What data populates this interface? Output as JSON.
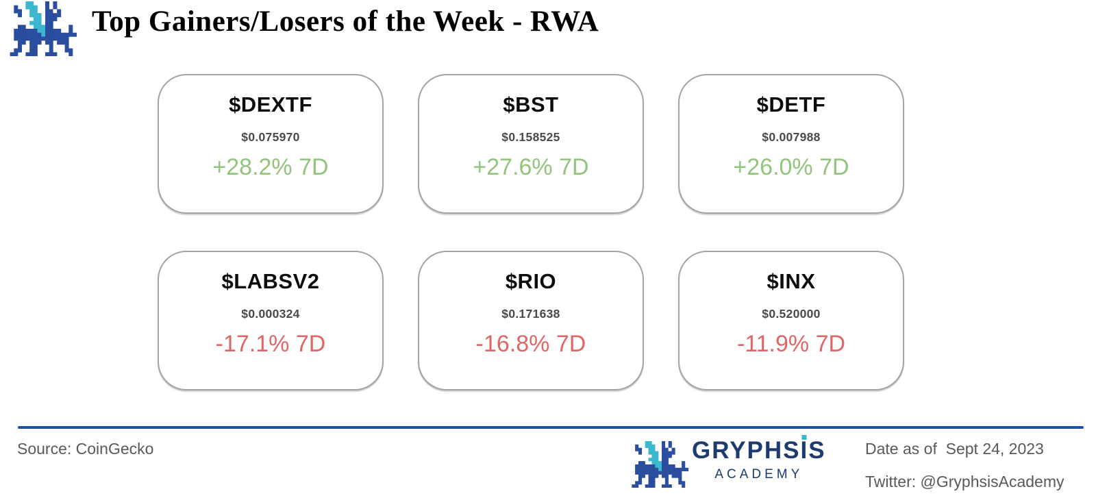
{
  "header": {
    "title": "Top Gainers/Losers of the Week - RWA",
    "logo_icon": "pixel-dragon"
  },
  "cards": [
    {
      "ticker": "$DEXTF",
      "price": "$0.075970",
      "change": "+28.2% 7D",
      "direction": "gain"
    },
    {
      "ticker": "$BST",
      "price": "$0.158525",
      "change": "+27.6% 7D",
      "direction": "gain"
    },
    {
      "ticker": "$DETF",
      "price": "$0.007988",
      "change": "+26.0% 7D",
      "direction": "gain"
    },
    {
      "ticker": "$LABSV2",
      "price": "$0.000324",
      "change": "-17.1% 7D",
      "direction": "loss"
    },
    {
      "ticker": "$RIO",
      "price": "$0.171638",
      "change": "-16.8% 7D",
      "direction": "loss"
    },
    {
      "ticker": "$INX",
      "price": "$0.520000",
      "change": "-11.9% 7D",
      "direction": "loss"
    }
  ],
  "colors": {
    "gain": "#93c47d",
    "loss": "#e06666",
    "divider": "#2156a5",
    "navy": "#1e3a6e",
    "teal": "#3bb8cf",
    "dragon_body": "#2a4d9e"
  },
  "footer": {
    "source": "Source: CoinGecko",
    "brand": {
      "pre": "GRYPHS",
      "i": "I",
      "post": "S",
      "sub": "ACADEMY",
      "logo_icon": "pixel-dragon"
    },
    "date": "Date as of  Sept 24, 2023",
    "twitter": "Twitter: @GryphsisAcademy"
  },
  "chart_data": {
    "type": "table",
    "title": "Top Gainers/Losers of the Week - RWA",
    "columns": [
      "ticker",
      "price_usd",
      "change_7d_pct"
    ],
    "rows": [
      [
        "$DEXTF",
        0.07597,
        28.2
      ],
      [
        "$BST",
        0.158525,
        27.6
      ],
      [
        "$DETF",
        0.007988,
        26.0
      ],
      [
        "$LABSV2",
        0.000324,
        -17.1
      ],
      [
        "$RIO",
        0.171638,
        -16.8
      ],
      [
        "$INX",
        0.52,
        -11.9
      ]
    ],
    "source": "CoinGecko",
    "as_of_date": "Sept 24, 2023"
  }
}
